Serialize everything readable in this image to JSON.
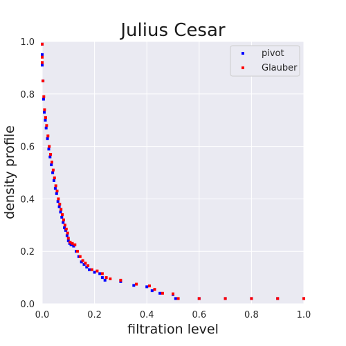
{
  "chart_data": {
    "type": "scatter",
    "title": "Julius Cesar",
    "xlabel": "filtration level",
    "ylabel": "density profile",
    "xlim": [
      0,
      1
    ],
    "ylim": [
      0,
      1
    ],
    "xticks": [
      "0.0",
      "0.2",
      "0.4",
      "0.6",
      "0.8",
      "1.0"
    ],
    "yticks": [
      "0.0",
      "0.2",
      "0.4",
      "0.6",
      "0.8",
      "1.0"
    ],
    "grid": true,
    "legend_position": "top-right",
    "background_color": "#eaeaf2",
    "series": [
      {
        "name": "pivot",
        "color": "#0000ff",
        "points": [
          [
            0.0,
            0.99
          ],
          [
            0.0,
            0.95
          ],
          [
            0.0,
            0.91
          ],
          [
            0.003,
            0.85
          ],
          [
            0.005,
            0.78
          ],
          [
            0.008,
            0.73
          ],
          [
            0.012,
            0.7
          ],
          [
            0.015,
            0.67
          ],
          [
            0.02,
            0.63
          ],
          [
            0.025,
            0.59
          ],
          [
            0.03,
            0.56
          ],
          [
            0.035,
            0.53
          ],
          [
            0.04,
            0.5
          ],
          [
            0.045,
            0.47
          ],
          [
            0.05,
            0.44
          ],
          [
            0.055,
            0.42
          ],
          [
            0.06,
            0.39
          ],
          [
            0.065,
            0.37
          ],
          [
            0.07,
            0.35
          ],
          [
            0.075,
            0.33
          ],
          [
            0.08,
            0.31
          ],
          [
            0.085,
            0.29
          ],
          [
            0.09,
            0.28
          ],
          [
            0.095,
            0.26
          ],
          [
            0.1,
            0.24
          ],
          [
            0.105,
            0.23
          ],
          [
            0.11,
            0.225
          ],
          [
            0.12,
            0.22
          ],
          [
            0.13,
            0.2
          ],
          [
            0.14,
            0.18
          ],
          [
            0.15,
            0.16
          ],
          [
            0.16,
            0.15
          ],
          [
            0.17,
            0.14
          ],
          [
            0.18,
            0.13
          ],
          [
            0.2,
            0.12
          ],
          [
            0.22,
            0.115
          ],
          [
            0.23,
            0.1
          ],
          [
            0.24,
            0.09
          ],
          [
            0.3,
            0.085
          ],
          [
            0.35,
            0.07
          ],
          [
            0.4,
            0.065
          ],
          [
            0.42,
            0.05
          ],
          [
            0.45,
            0.04
          ],
          [
            0.5,
            0.035
          ],
          [
            0.51,
            0.02
          ],
          [
            0.6,
            0.02
          ],
          [
            0.7,
            0.02
          ],
          [
            0.8,
            0.02
          ],
          [
            0.9,
            0.02
          ],
          [
            1.0,
            0.02
          ]
        ]
      },
      {
        "name": "Glauber",
        "color": "#ff0000",
        "points": [
          [
            0.0,
            0.99
          ],
          [
            0.0,
            0.94
          ],
          [
            0.0,
            0.92
          ],
          [
            0.003,
            0.85
          ],
          [
            0.006,
            0.79
          ],
          [
            0.009,
            0.74
          ],
          [
            0.013,
            0.71
          ],
          [
            0.017,
            0.68
          ],
          [
            0.022,
            0.64
          ],
          [
            0.027,
            0.6
          ],
          [
            0.032,
            0.57
          ],
          [
            0.037,
            0.54
          ],
          [
            0.042,
            0.51
          ],
          [
            0.047,
            0.48
          ],
          [
            0.052,
            0.45
          ],
          [
            0.057,
            0.43
          ],
          [
            0.062,
            0.4
          ],
          [
            0.067,
            0.38
          ],
          [
            0.072,
            0.36
          ],
          [
            0.077,
            0.34
          ],
          [
            0.082,
            0.32
          ],
          [
            0.087,
            0.3
          ],
          [
            0.092,
            0.285
          ],
          [
            0.097,
            0.27
          ],
          [
            0.1,
            0.25
          ],
          [
            0.107,
            0.235
          ],
          [
            0.115,
            0.23
          ],
          [
            0.125,
            0.225
          ],
          [
            0.135,
            0.2
          ],
          [
            0.145,
            0.18
          ],
          [
            0.155,
            0.165
          ],
          [
            0.165,
            0.155
          ],
          [
            0.175,
            0.145
          ],
          [
            0.19,
            0.13
          ],
          [
            0.21,
            0.125
          ],
          [
            0.23,
            0.115
          ],
          [
            0.245,
            0.1
          ],
          [
            0.26,
            0.095
          ],
          [
            0.3,
            0.09
          ],
          [
            0.36,
            0.075
          ],
          [
            0.41,
            0.068
          ],
          [
            0.43,
            0.055
          ],
          [
            0.46,
            0.04
          ],
          [
            0.5,
            0.038
          ],
          [
            0.52,
            0.02
          ],
          [
            0.6,
            0.02
          ],
          [
            0.7,
            0.02
          ],
          [
            0.8,
            0.02
          ],
          [
            0.9,
            0.02
          ],
          [
            1.0,
            0.02
          ]
        ]
      }
    ]
  }
}
